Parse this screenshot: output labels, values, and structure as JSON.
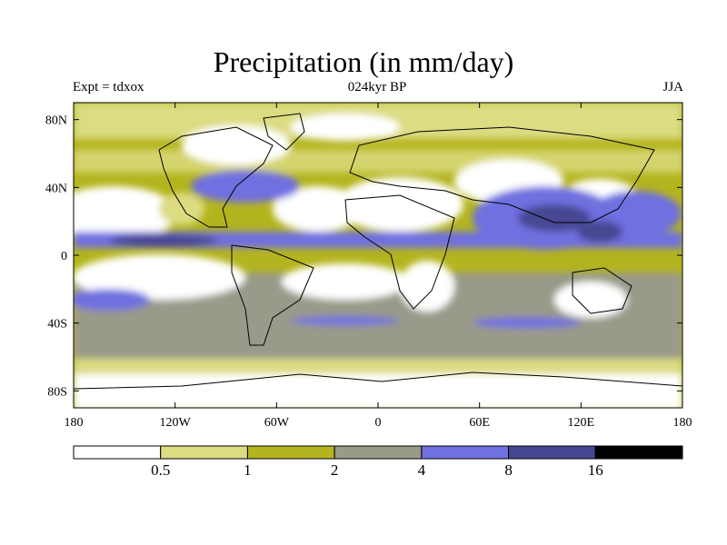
{
  "title": "Precipitation (in mm/day)",
  "subtitle_left": "Expt = tdxox",
  "subtitle_center": "024kyr BP",
  "subtitle_right": "JJA",
  "map": {
    "lon_ticks": [
      "180",
      "120W",
      "60W",
      "0",
      "60E",
      "120E",
      "180"
    ],
    "lat_ticks": [
      "80N",
      "40N",
      "0",
      "40S",
      "80S"
    ],
    "projection": "cylindrical equidistant",
    "lon_range": [
      -180,
      180
    ],
    "lat_range": [
      -90,
      90
    ]
  },
  "colorbar": {
    "levels": [
      "0.5",
      "1",
      "2",
      "4",
      "8",
      "16"
    ],
    "colors": [
      "#ffffff",
      "#dcdc82",
      "#b4b41e",
      "#9a9a8a",
      "#7070e0",
      "#464692",
      "#000000"
    ]
  }
}
